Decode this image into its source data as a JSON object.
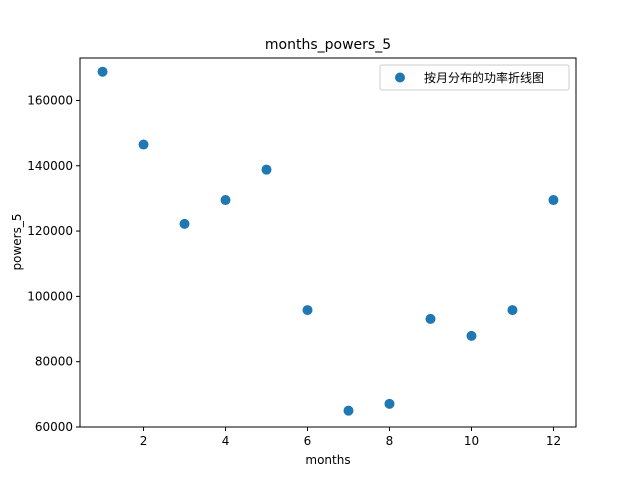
{
  "chart_data": {
    "type": "scatter",
    "title": "months_powers_5",
    "xlabel": "months",
    "ylabel": "powers_5",
    "xlim": [
      0.45,
      12.55
    ],
    "ylim": [
      60000,
      173000
    ],
    "xticks": [
      2,
      4,
      6,
      8,
      10,
      12
    ],
    "yticks": [
      60000,
      80000,
      100000,
      120000,
      140000,
      160000
    ],
    "grid": false,
    "legend_position": "upper right",
    "series": [
      {
        "name": "按月分布的功率折线图",
        "color": "#1f77b4",
        "x": [
          1,
          2,
          3,
          4,
          5,
          6,
          7,
          8,
          9,
          10,
          11,
          12
        ],
        "y": [
          168800,
          146500,
          122200,
          129500,
          138800,
          95800,
          65000,
          67100,
          93100,
          87900,
          95800,
          129500
        ]
      }
    ]
  }
}
